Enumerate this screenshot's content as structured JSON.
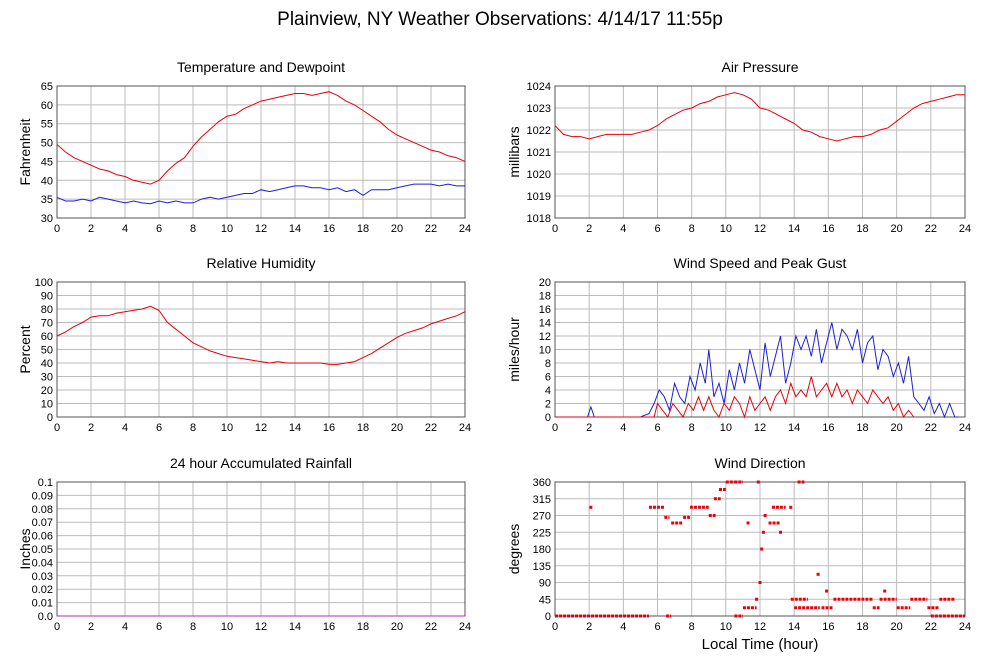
{
  "page": {
    "title": "Plainview, NY Weather Observations: 4/14/17 11:55p",
    "x_axis_title": "Local Time (hour)"
  },
  "colors": {
    "grid": "#bbbbbb",
    "frame": "#555555",
    "red": "#e8000b",
    "blue": "#1f1fd6",
    "rainfall": "#b030b0"
  },
  "chart_data": [
    {
      "type": "line",
      "title": "Temperature and Dewpoint",
      "ylabel": "Fahrenheit",
      "xlim": [
        0,
        24
      ],
      "ylim": [
        30,
        65
      ],
      "yticks": [
        30,
        35,
        40,
        45,
        50,
        55,
        60,
        65
      ],
      "xticks": [
        0,
        2,
        4,
        6,
        8,
        10,
        12,
        14,
        16,
        18,
        20,
        22,
        24
      ],
      "grid": true,
      "series": [
        {
          "color": "red",
          "x": [
            0,
            0.5,
            1,
            1.5,
            2,
            2.5,
            3,
            3.5,
            4,
            4.5,
            5,
            5.5,
            6,
            6.5,
            7,
            7.5,
            8,
            8.5,
            9,
            9.5,
            10,
            10.5,
            11,
            11.5,
            12,
            12.5,
            13,
            13.5,
            14,
            14.5,
            15,
            15.5,
            16,
            16.5,
            17,
            17.5,
            18,
            18.5,
            19,
            19.5,
            20,
            20.5,
            21,
            21.5,
            22,
            22.5,
            23,
            23.5,
            24
          ],
          "y": [
            49.5,
            47.5,
            46,
            45,
            44,
            43,
            42.5,
            41.5,
            41,
            40,
            39.5,
            39,
            40,
            42.5,
            44.5,
            46,
            49,
            51.5,
            53.5,
            55.5,
            57,
            57.5,
            59,
            60,
            61,
            61.5,
            62,
            62.5,
            63,
            63,
            62.5,
            63,
            63.5,
            62.5,
            61,
            60,
            58.5,
            57,
            55.5,
            53.5,
            52,
            51,
            50,
            49,
            48,
            47.5,
            46.5,
            46,
            45
          ]
        },
        {
          "color": "blue",
          "x": [
            0,
            0.5,
            1,
            1.5,
            2,
            2.5,
            3,
            3.5,
            4,
            4.5,
            5,
            5.5,
            6,
            6.5,
            7,
            7.5,
            8,
            8.5,
            9,
            9.5,
            10,
            10.5,
            11,
            11.5,
            12,
            12.5,
            13,
            13.5,
            14,
            14.5,
            15,
            15.5,
            16,
            16.5,
            17,
            17.5,
            18,
            18.5,
            19,
            19.5,
            20,
            20.5,
            21,
            21.5,
            22,
            22.5,
            23,
            23.5,
            24
          ],
          "y": [
            35.5,
            34.5,
            34.5,
            35,
            34.5,
            35.5,
            35,
            34.5,
            34,
            34.5,
            34,
            33.8,
            34.5,
            34,
            34.5,
            34,
            34,
            35,
            35.5,
            35,
            35.5,
            36,
            36.5,
            36.5,
            37.5,
            37,
            37.5,
            38,
            38.5,
            38.5,
            38,
            38,
            37.5,
            38,
            37,
            37.5,
            36,
            37.5,
            37.5,
            37.5,
            38,
            38.5,
            39,
            39,
            39,
            38.5,
            39,
            38.5,
            38.5
          ]
        }
      ]
    },
    {
      "type": "line",
      "title": "Air Pressure",
      "ylabel": "millibars",
      "xlim": [
        0,
        24
      ],
      "ylim": [
        1018,
        1024
      ],
      "yticks": [
        1018,
        1019,
        1020,
        1021,
        1022,
        1023,
        1024
      ],
      "xticks": [
        0,
        2,
        4,
        6,
        8,
        10,
        12,
        14,
        16,
        18,
        20,
        22,
        24
      ],
      "grid": true,
      "series": [
        {
          "color": "red",
          "x": [
            0,
            0.5,
            1,
            1.5,
            2,
            2.5,
            3,
            3.5,
            4,
            4.5,
            5,
            5.5,
            6,
            6.5,
            7,
            7.5,
            8,
            8.5,
            9,
            9.5,
            10,
            10.5,
            11,
            11.5,
            12,
            12.5,
            13,
            13.5,
            14,
            14.5,
            15,
            15.5,
            16,
            16.5,
            17,
            17.5,
            18,
            18.5,
            19,
            19.5,
            20,
            20.5,
            21,
            21.5,
            22,
            22.5,
            23,
            23.5,
            24
          ],
          "y": [
            1022.2,
            1021.8,
            1021.7,
            1021.7,
            1021.6,
            1021.7,
            1021.8,
            1021.8,
            1021.8,
            1021.8,
            1021.9,
            1022.0,
            1022.2,
            1022.5,
            1022.7,
            1022.9,
            1023.0,
            1023.2,
            1023.3,
            1023.5,
            1023.6,
            1023.7,
            1023.6,
            1023.4,
            1023.0,
            1022.9,
            1022.7,
            1022.5,
            1022.3,
            1022.0,
            1021.9,
            1021.7,
            1021.6,
            1021.5,
            1021.6,
            1021.7,
            1021.7,
            1021.8,
            1022.0,
            1022.1,
            1022.4,
            1022.7,
            1023.0,
            1023.2,
            1023.3,
            1023.4,
            1023.5,
            1023.6,
            1023.6
          ]
        }
      ]
    },
    {
      "type": "line",
      "title": "Relative Humidity",
      "ylabel": "Percent",
      "xlim": [
        0,
        24
      ],
      "ylim": [
        0,
        100
      ],
      "yticks": [
        0,
        10,
        20,
        30,
        40,
        50,
        60,
        70,
        80,
        90,
        100
      ],
      "xticks": [
        0,
        2,
        4,
        6,
        8,
        10,
        12,
        14,
        16,
        18,
        20,
        22,
        24
      ],
      "grid": true,
      "series": [
        {
          "color": "red",
          "x": [
            0,
            0.5,
            1,
            1.5,
            2,
            2.5,
            3,
            3.5,
            4,
            4.5,
            5,
            5.5,
            6,
            6.5,
            7,
            7.5,
            8,
            8.5,
            9,
            9.5,
            10,
            10.5,
            11,
            11.5,
            12,
            12.5,
            13,
            13.5,
            14,
            14.5,
            15,
            15.5,
            16,
            16.5,
            17,
            17.5,
            18,
            18.5,
            19,
            19.5,
            20,
            20.5,
            21,
            21.5,
            22,
            22.5,
            23,
            23.5,
            24
          ],
          "y": [
            60,
            63,
            67,
            70,
            74,
            75,
            75,
            77,
            78,
            79,
            80,
            82,
            79,
            70,
            65,
            60,
            55,
            52,
            49,
            47,
            45,
            44,
            43,
            42,
            41,
            40,
            41,
            40,
            40,
            40,
            40,
            40,
            39,
            39,
            40,
            41,
            44,
            47,
            51,
            55,
            59,
            62,
            64,
            66,
            69,
            71,
            73,
            75,
            78
          ]
        }
      ]
    },
    {
      "type": "line",
      "title": "Wind Speed and Peak Gust",
      "ylabel": "miles/hour",
      "xlim": [
        0,
        24
      ],
      "ylim": [
        0,
        20
      ],
      "yticks": [
        0,
        2,
        4,
        6,
        8,
        10,
        12,
        14,
        16,
        18,
        20
      ],
      "xticks": [
        0,
        2,
        4,
        6,
        8,
        10,
        12,
        14,
        16,
        18,
        20,
        22,
        24
      ],
      "grid": true,
      "series": [
        {
          "color": "blue",
          "x": [
            0,
            1.9,
            2.1,
            2.3,
            5.0,
            5.5,
            5.8,
            6.1,
            6.4,
            6.7,
            7.0,
            7.3,
            7.6,
            7.9,
            8.2,
            8.5,
            8.8,
            9.0,
            9.3,
            9.6,
            9.9,
            10.2,
            10.5,
            10.8,
            11.1,
            11.4,
            11.7,
            12.0,
            12.3,
            12.6,
            12.9,
            13.2,
            13.5,
            13.8,
            14.1,
            14.4,
            14.7,
            15.0,
            15.3,
            15.6,
            15.9,
            16.2,
            16.5,
            16.8,
            17.1,
            17.4,
            17.7,
            18.0,
            18.3,
            18.6,
            18.9,
            19.2,
            19.5,
            19.8,
            20.1,
            20.4,
            20.7,
            21.0,
            21.3,
            21.6,
            21.9,
            22.2,
            22.5,
            22.8,
            23.1,
            23.4,
            23.6
          ],
          "y": [
            0,
            0,
            1.5,
            0,
            0,
            0.5,
            2,
            4,
            3,
            1,
            5,
            3,
            2,
            6,
            4,
            8,
            5,
            10,
            3,
            5,
            2,
            7,
            4,
            8,
            5,
            10,
            7,
            4,
            11,
            6,
            9,
            12,
            5,
            8,
            12,
            10,
            12,
            9,
            13,
            8,
            11,
            14,
            10,
            13,
            12,
            10,
            13,
            8,
            11,
            12,
            7,
            10,
            9,
            6,
            8,
            5,
            9,
            3,
            2,
            1,
            3,
            0.5,
            2,
            0,
            2,
            0,
            0
          ]
        },
        {
          "color": "red",
          "x": [
            0,
            5.8,
            6.0,
            6.3,
            6.6,
            6.9,
            7.2,
            7.5,
            7.8,
            8.1,
            8.4,
            8.7,
            9.0,
            9.3,
            9.6,
            9.9,
            10.2,
            10.5,
            10.8,
            11.1,
            11.4,
            11.7,
            12.0,
            12.3,
            12.6,
            12.9,
            13.2,
            13.5,
            13.8,
            14.1,
            14.4,
            14.7,
            15.0,
            15.3,
            15.6,
            15.9,
            16.2,
            16.5,
            16.8,
            17.1,
            17.4,
            17.7,
            18.0,
            18.3,
            18.6,
            18.9,
            19.2,
            19.5,
            19.8,
            20.1,
            20.4,
            20.7,
            21.0
          ],
          "y": [
            0,
            0,
            2,
            1,
            0,
            2,
            1,
            0,
            2,
            1,
            3,
            1,
            3,
            1,
            0,
            2,
            1,
            3,
            2,
            0,
            3,
            1,
            2,
            3,
            1,
            3,
            4,
            2,
            5,
            3,
            4,
            3,
            6,
            3,
            4,
            5,
            3,
            5,
            3,
            4,
            2,
            4,
            3,
            2,
            4,
            3,
            2,
            3,
            1,
            2,
            0,
            1,
            0
          ]
        }
      ]
    },
    {
      "type": "line",
      "title": "24 hour Accumulated Rainfall",
      "ylabel": "Inches",
      "xlim": [
        0,
        24
      ],
      "ylim": [
        0,
        0.1
      ],
      "yticks": [
        0.0,
        0.01,
        0.02,
        0.03,
        0.04,
        0.05,
        0.06,
        0.07,
        0.08,
        0.09,
        0.1
      ],
      "ytick_labels": [
        "0.0",
        "0.01",
        "0.02",
        "0.03",
        "0.04",
        "0.05",
        "0.06",
        "0.07",
        "0.08",
        "0.09",
        "0.1"
      ],
      "xticks": [
        0,
        2,
        4,
        6,
        8,
        10,
        12,
        14,
        16,
        18,
        20,
        22,
        24
      ],
      "grid": true,
      "series": [
        {
          "color": "rainfall",
          "x": [
            0,
            24
          ],
          "y": [
            0,
            0
          ]
        }
      ]
    },
    {
      "type": "scatter",
      "title": "Wind Direction",
      "ylabel": "degrees",
      "xlim": [
        0,
        24
      ],
      "ylim": [
        0,
        360
      ],
      "yticks": [
        0,
        45,
        90,
        135,
        180,
        225,
        270,
        315,
        360
      ],
      "xticks": [
        0,
        2,
        4,
        6,
        8,
        10,
        12,
        14,
        16,
        18,
        20,
        22,
        24
      ],
      "grid": true,
      "series": [
        {
          "color": "red",
          "segments": [
            {
              "x0": 0.0,
              "x1": 5.5,
              "y": 0
            },
            {
              "x0": 5.5,
              "x1": 6.4,
              "y": 292
            },
            {
              "x0": 6.4,
              "x1": 6.7,
              "y": 265
            },
            {
              "x0": 6.8,
              "x1": 7.5,
              "y": 250
            },
            {
              "x0": 7.5,
              "x1": 7.9,
              "y": 265
            },
            {
              "x0": 7.9,
              "x1": 9.0,
              "y": 292
            },
            {
              "x0": 9.0,
              "x1": 9.4,
              "y": 270
            },
            {
              "x0": 9.3,
              "x1": 9.7,
              "y": 315
            },
            {
              "x0": 9.6,
              "x1": 10.0,
              "y": 340
            },
            {
              "x0": 10.0,
              "x1": 10.5,
              "y": 360
            },
            {
              "x0": 10.5,
              "x1": 11.0,
              "y": 360
            },
            {
              "x0": 11.0,
              "x1": 11.8,
              "y": 22
            },
            {
              "x0": 12.7,
              "x1": 13.5,
              "y": 292
            },
            {
              "x0": 12.5,
              "x1": 13.2,
              "y": 250
            },
            {
              "x0": 14.2,
              "x1": 14.6,
              "y": 360
            },
            {
              "x0": 13.8,
              "x1": 14.8,
              "y": 45
            },
            {
              "x0": 14.0,
              "x1": 15.5,
              "y": 22
            },
            {
              "x0": 15.6,
              "x1": 16.3,
              "y": 22
            },
            {
              "x0": 16.3,
              "x1": 17.0,
              "y": 45
            },
            {
              "x0": 17.0,
              "x1": 18.6,
              "y": 45
            },
            {
              "x0": 18.6,
              "x1": 19.0,
              "y": 22
            },
            {
              "x0": 19.0,
              "x1": 20.0,
              "y": 45
            },
            {
              "x0": 20.0,
              "x1": 20.8,
              "y": 22
            },
            {
              "x0": 20.8,
              "x1": 21.8,
              "y": 45
            },
            {
              "x0": 21.8,
              "x1": 22.5,
              "y": 22
            },
            {
              "x0": 22.5,
              "x1": 23.4,
              "y": 45
            },
            {
              "x0": 22.0,
              "x1": 24.0,
              "y": 0
            },
            {
              "x0": 6.5,
              "x1": 6.8,
              "y": 0
            },
            {
              "x0": 10.5,
              "x1": 11.0,
              "y": 0
            }
          ],
          "points": [
            {
              "x": 2.1,
              "y": 292
            },
            {
              "x": 11.3,
              "y": 250
            },
            {
              "x": 11.8,
              "y": 45
            },
            {
              "x": 12.0,
              "y": 90
            },
            {
              "x": 12.1,
              "y": 180
            },
            {
              "x": 12.2,
              "y": 225
            },
            {
              "x": 12.3,
              "y": 270
            },
            {
              "x": 13.2,
              "y": 225
            },
            {
              "x": 13.8,
              "y": 292
            },
            {
              "x": 15.4,
              "y": 112
            },
            {
              "x": 15.9,
              "y": 67
            },
            {
              "x": 19.3,
              "y": 67
            },
            {
              "x": 11.9,
              "y": 360
            }
          ]
        }
      ]
    }
  ]
}
